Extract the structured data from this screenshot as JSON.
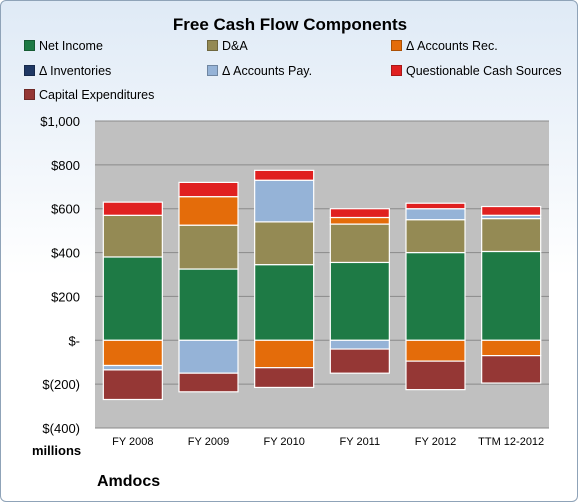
{
  "chart_data": {
    "type": "bar",
    "stacked": true,
    "title": "Free Cash Flow Components",
    "units_label": "millions",
    "footer": "Amdocs",
    "categories": [
      "FY 2008",
      "FY 2009",
      "FY 2010",
      "FY 2011",
      "FY 2012",
      "TTM 12-2012"
    ],
    "yticks": [
      "$(400)",
      "$(200)",
      "$-",
      "$200",
      "$400",
      "$600",
      "$800",
      "$1,000"
    ],
    "ylim": [
      -400,
      1000
    ],
    "grid": true,
    "legend_position": "top",
    "series": [
      {
        "name": "Net Income",
        "color": "#1e7a45",
        "values": [
          380,
          325,
          345,
          355,
          400,
          405
        ]
      },
      {
        "name": "D&A",
        "color": "#948a54",
        "values": [
          190,
          200,
          195,
          175,
          150,
          150
        ]
      },
      {
        "name": "Δ Accounts Rec.",
        "color": "#e46c0a",
        "values": [
          -115,
          130,
          -125,
          30,
          -95,
          -70
        ]
      },
      {
        "name": "Δ Inventories",
        "color": "#1f3864",
        "values": [
          0,
          0,
          0,
          0,
          0,
          0
        ]
      },
      {
        "name": "Δ Accounts Pay.",
        "color": "#95b3d7",
        "values": [
          -20,
          -150,
          190,
          -40,
          50,
          15
        ]
      },
      {
        "name": "Questionable Cash Sources",
        "color": "#e02020",
        "values": [
          60,
          65,
          45,
          40,
          25,
          40
        ]
      },
      {
        "name": "Capital Expenditures",
        "color": "#953735",
        "values": [
          -135,
          -85,
          -90,
          -110,
          -130,
          -125
        ]
      }
    ]
  }
}
